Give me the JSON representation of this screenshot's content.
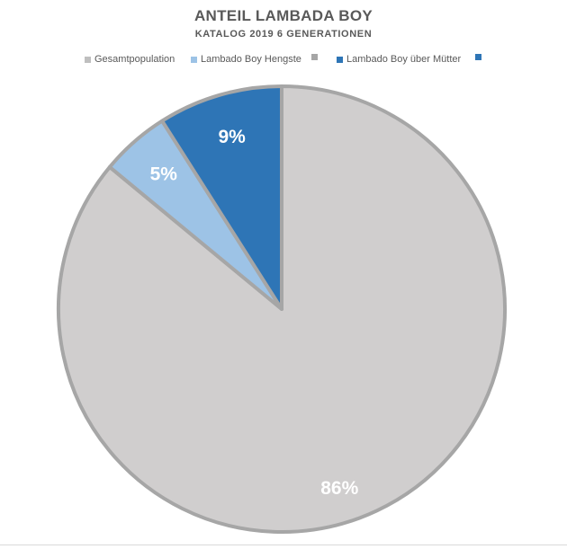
{
  "chart_data": {
    "type": "pie",
    "title": "ANTEIL LAMBADA BOY",
    "subtitle": "KATALOG 2019 6 GENERATIONEN",
    "legend_position": "top",
    "legend": [
      {
        "label": "Gesamtpopulation",
        "color": "#bfbfbf"
      },
      {
        "label": "Lambado Boy Hengste",
        "color": "#9dc3e6"
      },
      {
        "label": "",
        "color": "#a6a6a6"
      },
      {
        "label": "Lambado Boy über Mütter",
        "color": "#2e75b6"
      },
      {
        "label": "",
        "color": "#2e75b6"
      }
    ],
    "slices": [
      {
        "label": "Gesamtpopulation",
        "value": 86,
        "display": "86%",
        "color": "#d0cece",
        "border": "#a6a6a6"
      },
      {
        "label": "Lambado Boy Hengste",
        "value": 5,
        "display": "5%",
        "color": "#9dc3e6",
        "border": "#a6a6a6"
      },
      {
        "label": "Lambado Boy über Mütter",
        "value": 9,
        "display": "9%",
        "color": "#2e75b6",
        "border": "#a6a6a6"
      }
    ]
  }
}
